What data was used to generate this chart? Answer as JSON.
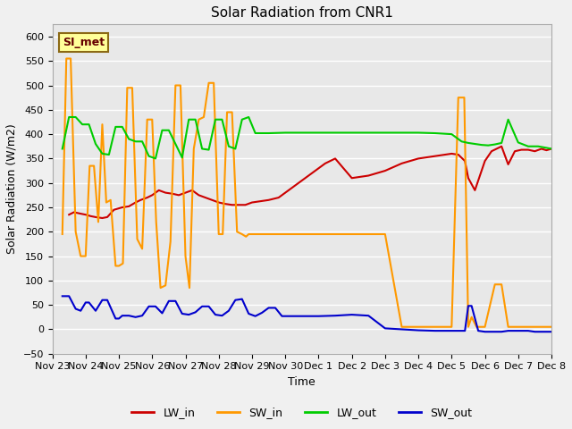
{
  "title": "Solar Radiation from CNR1",
  "xlabel": "Time",
  "ylabel": "Solar Radiation (W/m2)",
  "ylim": [
    -50,
    625
  ],
  "yticks": [
    -50,
    0,
    50,
    100,
    150,
    200,
    250,
    300,
    350,
    400,
    450,
    500,
    550,
    600
  ],
  "fig_bg": "#f0f0f0",
  "plot_bg": "#e8e8e8",
  "annotation_text": "SI_met",
  "annotation_box_color": "#ffff99",
  "annotation_box_edge": "#8b6914",
  "x_labels": [
    "Nov 23",
    "Nov 24",
    "Nov 25",
    "Nov 26",
    "Nov 27",
    "Nov 28",
    "Nov 29",
    "Nov 30",
    "Dec 1",
    "Dec 2",
    "Dec 3",
    "Dec 4",
    "Dec 5",
    "Dec 6",
    "Dec 7",
    "Dec 8"
  ],
  "x_values": [
    0,
    1,
    2,
    3,
    4,
    5,
    6,
    7,
    8,
    9,
    10,
    11,
    12,
    13,
    14,
    15
  ],
  "LW_in": {
    "color": "#cc0000",
    "x": [
      0.5,
      0.65,
      0.85,
      1.0,
      1.15,
      1.3,
      1.5,
      1.65,
      1.85,
      2.1,
      2.3,
      2.5,
      2.65,
      2.85,
      3.0,
      3.2,
      3.4,
      3.6,
      3.8,
      4.0,
      4.2,
      4.4,
      4.6,
      4.8,
      5.0,
      5.2,
      5.4,
      5.6,
      5.8,
      6.0,
      6.2,
      6.5,
      6.8,
      7.0,
      7.3,
      7.6,
      7.9,
      8.2,
      8.5,
      9.0,
      9.5,
      10.0,
      10.5,
      11.0,
      11.5,
      12.0,
      12.2,
      12.4,
      12.5,
      12.7,
      12.85,
      13.0,
      13.2,
      13.5,
      13.7,
      13.9,
      14.1,
      14.3,
      14.5,
      14.7,
      14.85,
      15.0
    ],
    "y": [
      235,
      240,
      237,
      235,
      232,
      230,
      228,
      230,
      245,
      250,
      252,
      260,
      265,
      270,
      275,
      285,
      280,
      278,
      275,
      280,
      285,
      275,
      270,
      265,
      260,
      257,
      255,
      255,
      255,
      260,
      262,
      265,
      270,
      280,
      295,
      310,
      325,
      340,
      350,
      310,
      315,
      325,
      340,
      350,
      355,
      360,
      358,
      345,
      310,
      285,
      315,
      345,
      365,
      375,
      338,
      365,
      368,
      368,
      365,
      370,
      367,
      370
    ]
  },
  "SW_in": {
    "color": "#ff9900",
    "x": [
      0.3,
      0.42,
      0.55,
      0.7,
      0.85,
      1.0,
      1.12,
      1.25,
      1.38,
      1.5,
      1.62,
      1.75,
      1.9,
      2.0,
      2.12,
      2.25,
      2.4,
      2.55,
      2.7,
      2.85,
      3.0,
      3.12,
      3.25,
      3.4,
      3.55,
      3.7,
      3.85,
      4.0,
      4.12,
      4.25,
      4.4,
      4.55,
      4.7,
      4.85,
      5.0,
      5.12,
      5.25,
      5.4,
      5.55,
      5.7,
      5.82,
      5.9,
      6.02,
      6.15,
      6.3,
      6.45,
      6.6,
      6.75,
      7.0,
      7.5,
      8.0,
      8.5,
      9.0,
      9.5,
      10.0,
      10.5,
      11.0,
      11.5,
      12.0,
      12.2,
      12.38,
      12.5,
      12.6,
      12.75,
      13.0,
      13.3,
      13.5,
      13.7,
      13.9,
      14.1,
      14.35,
      14.55,
      14.75,
      15.0
    ],
    "y": [
      195,
      555,
      555,
      200,
      150,
      150,
      335,
      335,
      220,
      420,
      260,
      265,
      130,
      130,
      135,
      495,
      495,
      185,
      165,
      430,
      430,
      220,
      85,
      90,
      180,
      500,
      500,
      150,
      85,
      370,
      430,
      435,
      505,
      505,
      195,
      195,
      445,
      445,
      200,
      195,
      190,
      195,
      195,
      195,
      195,
      195,
      195,
      195,
      195,
      195,
      195,
      195,
      195,
      195,
      195,
      5,
      5,
      5,
      5,
      475,
      475,
      5,
      25,
      5,
      5,
      92,
      92,
      5,
      5,
      5,
      5,
      5,
      5,
      5
    ]
  },
  "LW_out": {
    "color": "#00cc00",
    "x": [
      0.3,
      0.5,
      0.7,
      0.9,
      1.1,
      1.3,
      1.5,
      1.7,
      1.9,
      2.1,
      2.3,
      2.5,
      2.7,
      2.9,
      3.1,
      3.3,
      3.5,
      3.7,
      3.9,
      4.1,
      4.3,
      4.5,
      4.7,
      4.9,
      5.1,
      5.3,
      5.5,
      5.7,
      5.9,
      6.1,
      6.5,
      7.0,
      7.5,
      8.0,
      8.5,
      9.0,
      9.5,
      10.0,
      10.5,
      11.0,
      11.5,
      12.0,
      12.3,
      12.5,
      12.7,
      12.9,
      13.1,
      13.3,
      13.5,
      13.7,
      14.0,
      14.3,
      14.6,
      14.85,
      15.0
    ],
    "y": [
      370,
      435,
      435,
      420,
      420,
      380,
      360,
      358,
      415,
      415,
      390,
      385,
      385,
      355,
      350,
      408,
      408,
      380,
      352,
      430,
      430,
      370,
      368,
      430,
      430,
      375,
      370,
      430,
      435,
      402,
      402,
      403,
      403,
      403,
      403,
      403,
      403,
      403,
      403,
      403,
      402,
      400,
      385,
      382,
      380,
      378,
      377,
      379,
      382,
      430,
      383,
      375,
      375,
      372,
      370
    ]
  },
  "SW_out": {
    "color": "#0000cc",
    "x": [
      0.3,
      0.5,
      0.7,
      0.85,
      1.0,
      1.1,
      1.3,
      1.5,
      1.65,
      1.9,
      2.0,
      2.1,
      2.3,
      2.5,
      2.7,
      2.9,
      3.1,
      3.3,
      3.5,
      3.7,
      3.9,
      4.1,
      4.3,
      4.5,
      4.7,
      4.9,
      5.1,
      5.3,
      5.5,
      5.7,
      5.9,
      6.1,
      6.3,
      6.5,
      6.7,
      6.9,
      7.5,
      8.0,
      8.5,
      9.0,
      9.5,
      10.0,
      10.5,
      11.0,
      11.5,
      12.0,
      12.2,
      12.4,
      12.5,
      12.6,
      12.8,
      13.0,
      13.2,
      13.5,
      13.7,
      13.9,
      14.1,
      14.3,
      14.5,
      14.7,
      15.0
    ],
    "y": [
      68,
      68,
      42,
      38,
      55,
      55,
      38,
      60,
      60,
      22,
      22,
      28,
      28,
      25,
      28,
      47,
      47,
      33,
      58,
      58,
      32,
      30,
      35,
      47,
      47,
      30,
      28,
      38,
      60,
      62,
      32,
      27,
      34,
      44,
      44,
      27,
      27,
      27,
      28,
      30,
      28,
      2,
      0,
      -2,
      -3,
      -3,
      -3,
      -3,
      48,
      48,
      -3,
      -5,
      -5,
      -5,
      -3,
      -3,
      -3,
      -3,
      -5,
      -5,
      -5
    ]
  },
  "legend": [
    {
      "label": "LW_in",
      "color": "#cc0000"
    },
    {
      "label": "SW_in",
      "color": "#ff9900"
    },
    {
      "label": "LW_out",
      "color": "#00cc00"
    },
    {
      "label": "SW_out",
      "color": "#0000cc"
    }
  ]
}
